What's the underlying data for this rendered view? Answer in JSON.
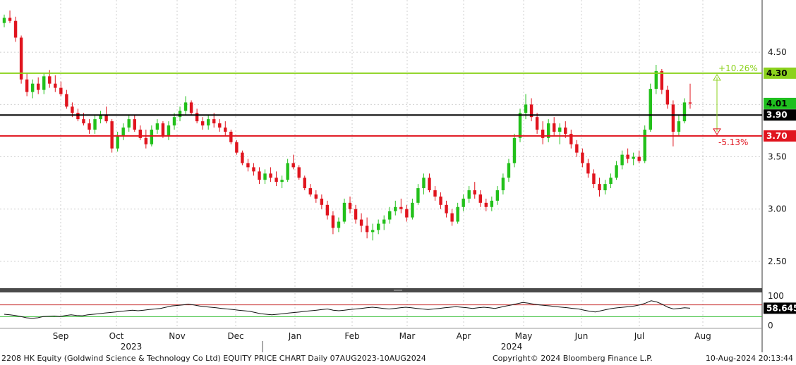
{
  "chart_data": [
    {
      "type": "candlestick",
      "name": "price",
      "yticks": [
        2.5,
        3.0,
        3.5,
        4.5
      ],
      "ylim": [
        2.25,
        5.0
      ],
      "grid": true,
      "x_months": [
        "Sep",
        "Oct",
        "Nov",
        "Dec",
        "Jan",
        "Feb",
        "Mar",
        "Apr",
        "May",
        "Jun",
        "Jul",
        "Aug"
      ],
      "x_years": [
        "2023",
        "2024"
      ],
      "levels": [
        {
          "value": 4.3,
          "label": "4.30",
          "color": "#8cd21e",
          "label_bg": "#8cd21e",
          "label_fg": "#000000"
        },
        {
          "value": 3.9,
          "label": "3.90",
          "color": "#000000",
          "label_bg": "#000000",
          "label_fg": "#ffffff"
        },
        {
          "value": 3.7,
          "label": "3.70",
          "color": "#e0141e",
          "label_bg": "#e0141e",
          "label_fg": "#ffffff"
        }
      ],
      "last_price": {
        "value": 4.01,
        "label": "4.01",
        "color": "#1fbf1f"
      },
      "annotations": [
        {
          "text": "+10.26%",
          "color": "#8cd21e"
        },
        {
          "text": "-5.13%",
          "color": "#e0141e"
        }
      ],
      "candles": [
        [
          4.78,
          4.86,
          4.74,
          4.83
        ],
        [
          4.83,
          4.9,
          4.78,
          4.8
        ],
        [
          4.8,
          4.84,
          4.6,
          4.64
        ],
        [
          4.64,
          4.66,
          4.2,
          4.24
        ],
        [
          4.24,
          4.3,
          4.08,
          4.12
        ],
        [
          4.12,
          4.24,
          4.06,
          4.2
        ],
        [
          4.2,
          4.26,
          4.1,
          4.14
        ],
        [
          4.14,
          4.3,
          4.1,
          4.27
        ],
        [
          4.27,
          4.33,
          4.16,
          4.2
        ],
        [
          4.2,
          4.28,
          4.12,
          4.16
        ],
        [
          4.16,
          4.22,
          4.08,
          4.1
        ],
        [
          4.1,
          4.14,
          3.96,
          3.98
        ],
        [
          3.98,
          4.02,
          3.88,
          3.92
        ],
        [
          3.92,
          3.96,
          3.84,
          3.86
        ],
        [
          3.86,
          3.92,
          3.8,
          3.82
        ],
        [
          3.82,
          3.86,
          3.72,
          3.76
        ],
        [
          3.76,
          3.9,
          3.72,
          3.86
        ],
        [
          3.86,
          3.94,
          3.82,
          3.9
        ],
        [
          3.9,
          3.98,
          3.82,
          3.84
        ],
        [
          3.84,
          3.86,
          3.54,
          3.58
        ],
        [
          3.58,
          3.74,
          3.55,
          3.7
        ],
        [
          3.7,
          3.82,
          3.66,
          3.78
        ],
        [
          3.78,
          3.9,
          3.74,
          3.86
        ],
        [
          3.86,
          3.9,
          3.74,
          3.76
        ],
        [
          3.76,
          3.8,
          3.66,
          3.68
        ],
        [
          3.68,
          3.76,
          3.58,
          3.62
        ],
        [
          3.62,
          3.8,
          3.6,
          3.76
        ],
        [
          3.76,
          3.86,
          3.72,
          3.82
        ],
        [
          3.82,
          3.84,
          3.68,
          3.7
        ],
        [
          3.7,
          3.84,
          3.66,
          3.8
        ],
        [
          3.8,
          3.92,
          3.76,
          3.88
        ],
        [
          3.88,
          3.98,
          3.84,
          3.94
        ],
        [
          3.94,
          4.08,
          3.9,
          4.02
        ],
        [
          4.02,
          4.04,
          3.9,
          3.92
        ],
        [
          3.92,
          3.96,
          3.82,
          3.84
        ],
        [
          3.84,
          3.88,
          3.76,
          3.8
        ],
        [
          3.8,
          3.9,
          3.76,
          3.86
        ],
        [
          3.86,
          3.92,
          3.78,
          3.82
        ],
        [
          3.82,
          3.86,
          3.74,
          3.78
        ],
        [
          3.78,
          3.84,
          3.7,
          3.74
        ],
        [
          3.74,
          3.76,
          3.62,
          3.64
        ],
        [
          3.64,
          3.66,
          3.52,
          3.54
        ],
        [
          3.54,
          3.56,
          3.42,
          3.44
        ],
        [
          3.44,
          3.48,
          3.36,
          3.4
        ],
        [
          3.4,
          3.44,
          3.32,
          3.36
        ],
        [
          3.36,
          3.4,
          3.24,
          3.28
        ],
        [
          3.28,
          3.38,
          3.24,
          3.34
        ],
        [
          3.34,
          3.4,
          3.26,
          3.3
        ],
        [
          3.3,
          3.36,
          3.22,
          3.26
        ],
        [
          3.26,
          3.32,
          3.2,
          3.28
        ],
        [
          3.28,
          3.48,
          3.26,
          3.44
        ],
        [
          3.44,
          3.52,
          3.38,
          3.4
        ],
        [
          3.4,
          3.42,
          3.28,
          3.3
        ],
        [
          3.3,
          3.32,
          3.18,
          3.2
        ],
        [
          3.2,
          3.24,
          3.12,
          3.14
        ],
        [
          3.14,
          3.18,
          3.06,
          3.1
        ],
        [
          3.1,
          3.14,
          3.0,
          3.04
        ],
        [
          3.04,
          3.08,
          2.9,
          2.94
        ],
        [
          2.94,
          2.98,
          2.76,
          2.82
        ],
        [
          2.82,
          2.92,
          2.78,
          2.88
        ],
        [
          2.88,
          3.1,
          2.86,
          3.06
        ],
        [
          3.06,
          3.12,
          2.96,
          3.0
        ],
        [
          3.0,
          3.04,
          2.86,
          2.9
        ],
        [
          2.9,
          2.96,
          2.78,
          2.84
        ],
        [
          2.84,
          2.92,
          2.72,
          2.78
        ],
        [
          2.78,
          2.86,
          2.7,
          2.8
        ],
        [
          2.8,
          2.9,
          2.76,
          2.86
        ],
        [
          2.86,
          2.94,
          2.8,
          2.9
        ],
        [
          2.9,
          3.02,
          2.86,
          2.98
        ],
        [
          2.98,
          3.08,
          2.94,
          3.02
        ],
        [
          3.02,
          3.1,
          2.96,
          3.0
        ],
        [
          3.0,
          3.04,
          2.88,
          2.92
        ],
        [
          2.92,
          3.1,
          2.9,
          3.06
        ],
        [
          3.06,
          3.24,
          3.04,
          3.2
        ],
        [
          3.2,
          3.34,
          3.14,
          3.3
        ],
        [
          3.3,
          3.34,
          3.16,
          3.18
        ],
        [
          3.18,
          3.22,
          3.08,
          3.12
        ],
        [
          3.12,
          3.16,
          3.0,
          3.04
        ],
        [
          3.04,
          3.08,
          2.92,
          2.96
        ],
        [
          2.96,
          3.0,
          2.84,
          2.88
        ],
        [
          2.88,
          3.06,
          2.86,
          3.02
        ],
        [
          3.02,
          3.14,
          2.98,
          3.1
        ],
        [
          3.1,
          3.22,
          3.06,
          3.18
        ],
        [
          3.18,
          3.26,
          3.1,
          3.14
        ],
        [
          3.14,
          3.18,
          3.02,
          3.06
        ],
        [
          3.06,
          3.1,
          2.98,
          3.02
        ],
        [
          3.02,
          3.12,
          2.98,
          3.08
        ],
        [
          3.08,
          3.22,
          3.04,
          3.18
        ],
        [
          3.18,
          3.34,
          3.14,
          3.3
        ],
        [
          3.3,
          3.48,
          3.26,
          3.44
        ],
        [
          3.44,
          3.72,
          3.4,
          3.68
        ],
        [
          3.68,
          3.96,
          3.64,
          3.92
        ],
        [
          3.92,
          4.1,
          3.86,
          4.0
        ],
        [
          4.0,
          4.06,
          3.84,
          3.88
        ],
        [
          3.88,
          3.92,
          3.72,
          3.76
        ],
        [
          3.76,
          3.84,
          3.62,
          3.68
        ],
        [
          3.68,
          3.86,
          3.64,
          3.82
        ],
        [
          3.82,
          3.88,
          3.7,
          3.74
        ],
        [
          3.74,
          3.82,
          3.62,
          3.78
        ],
        [
          3.78,
          3.84,
          3.68,
          3.72
        ],
        [
          3.72,
          3.76,
          3.58,
          3.62
        ],
        [
          3.62,
          3.66,
          3.5,
          3.54
        ],
        [
          3.54,
          3.58,
          3.4,
          3.44
        ],
        [
          3.44,
          3.48,
          3.3,
          3.34
        ],
        [
          3.34,
          3.38,
          3.2,
          3.24
        ],
        [
          3.24,
          3.3,
          3.12,
          3.18
        ],
        [
          3.18,
          3.28,
          3.14,
          3.24
        ],
        [
          3.24,
          3.34,
          3.2,
          3.3
        ],
        [
          3.3,
          3.46,
          3.28,
          3.42
        ],
        [
          3.42,
          3.56,
          3.38,
          3.52
        ],
        [
          3.52,
          3.58,
          3.44,
          3.48
        ],
        [
          3.48,
          3.54,
          3.42,
          3.5
        ],
        [
          3.5,
          3.56,
          3.44,
          3.46
        ],
        [
          3.46,
          3.8,
          3.44,
          3.76
        ],
        [
          3.76,
          4.2,
          3.74,
          4.15
        ],
        [
          4.15,
          4.38,
          4.1,
          4.32
        ],
        [
          4.32,
          4.34,
          4.1,
          4.14
        ],
        [
          4.14,
          4.18,
          3.96,
          4.0
        ],
        [
          4.0,
          4.04,
          3.6,
          3.74
        ],
        [
          3.74,
          3.9,
          3.7,
          3.84
        ],
        [
          3.84,
          4.06,
          3.82,
          4.02
        ],
        [
          4.02,
          4.2,
          3.96,
          4.01
        ]
      ]
    },
    {
      "type": "line",
      "name": "rsi",
      "yticks": [
        0,
        100
      ],
      "ylim": [
        -10,
        110
      ],
      "current": {
        "value": 58.645,
        "label": "58.645"
      },
      "overbought": 70,
      "oversold": 30,
      "values": [
        38,
        36,
        34,
        30,
        26,
        24,
        26,
        30,
        31,
        32,
        30,
        34,
        36,
        34,
        33,
        36,
        38,
        40,
        42,
        44,
        46,
        48,
        50,
        52,
        50,
        52,
        54,
        56,
        58,
        62,
        66,
        68,
        70,
        72,
        70,
        66,
        64,
        62,
        60,
        58,
        56,
        54,
        52,
        50,
        48,
        44,
        40,
        38,
        36,
        38,
        40,
        42,
        44,
        46,
        48,
        50,
        52,
        54,
        56,
        52,
        50,
        52,
        54,
        56,
        58,
        60,
        62,
        60,
        58,
        56,
        58,
        60,
        62,
        60,
        58,
        56,
        54,
        56,
        58,
        60,
        62,
        64,
        62,
        60,
        58,
        60,
        62,
        60,
        58,
        62,
        66,
        70,
        74,
        78,
        76,
        72,
        70,
        68,
        66,
        64,
        62,
        60,
        58,
        56,
        52,
        48,
        46,
        50,
        54,
        58,
        60,
        62,
        64,
        66,
        70,
        76,
        84,
        80,
        72,
        62,
        56,
        58,
        60,
        58.645
      ]
    }
  ],
  "footer": {
    "title": "2208 HK Equity (Goldwind Science & Technology Co Ltd) EQUITY PRICE CHART  Daily 07AUG2023-10AUG2024",
    "copyright": "Copyright© 2024 Bloomberg Finance L.P.",
    "timestamp": "10-Aug-2024 20:13:44"
  }
}
